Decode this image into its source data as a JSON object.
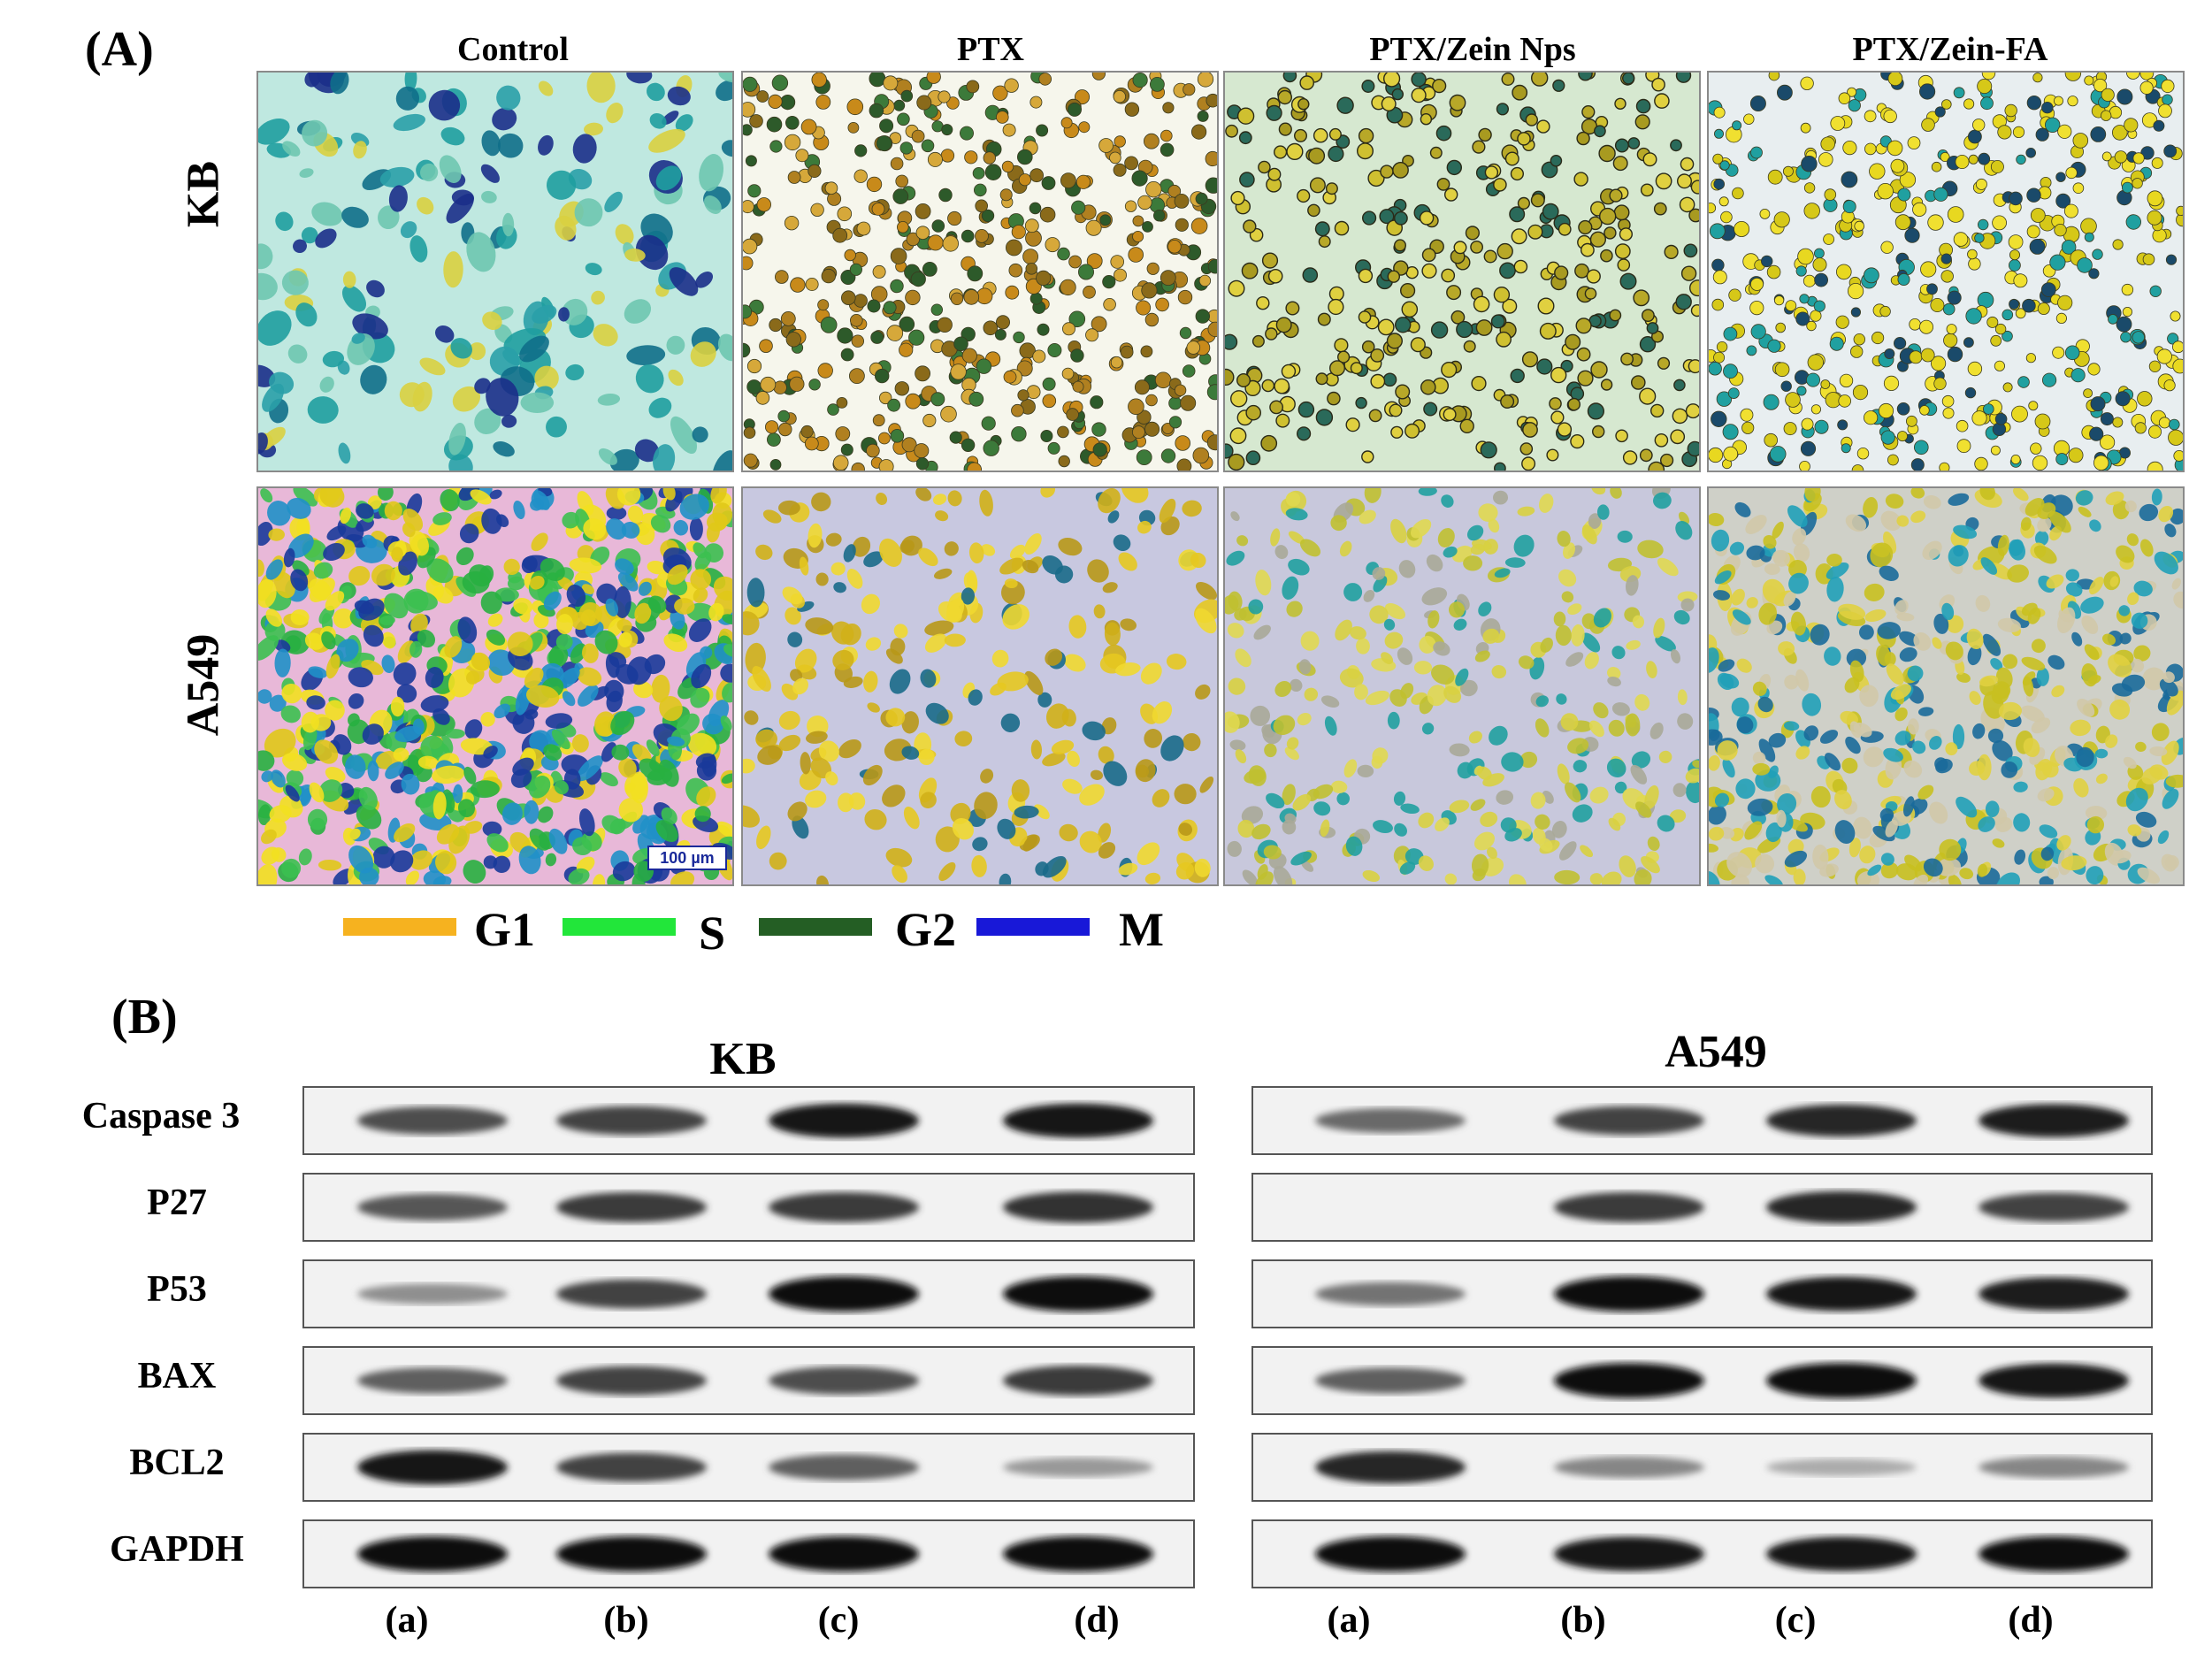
{
  "panelA": {
    "label": "(A)",
    "columns": [
      "Control",
      "PTX",
      "PTX/Zein Nps",
      "PTX/Zein-FA"
    ],
    "rows": [
      "KB",
      "A549"
    ],
    "scale_bar": "100 µm",
    "legend": [
      {
        "label": "G1",
        "color": "#f6b21f"
      },
      {
        "label": "S",
        "color": "#22e63a"
      },
      {
        "label": "G2",
        "color": "#245e24"
      },
      {
        "label": "M",
        "color": "#1818d8"
      }
    ]
  },
  "panelB": {
    "label": "(B)",
    "groups": [
      "KB",
      "A549"
    ],
    "proteins": [
      "Caspase 3",
      "P27",
      "P53",
      "BAX",
      "BCL2",
      "GAPDH"
    ],
    "lanes": [
      "(a)",
      "(b)",
      "(c)",
      "(d)"
    ],
    "band_intensity": {
      "KB": [
        [
          0.65,
          0.7,
          0.95,
          0.95
        ],
        [
          0.6,
          0.75,
          0.75,
          0.8
        ],
        [
          0.3,
          0.7,
          1.0,
          1.0
        ],
        [
          0.55,
          0.7,
          0.65,
          0.75
        ],
        [
          0.95,
          0.7,
          0.55,
          0.25
        ],
        [
          1.0,
          1.0,
          1.0,
          1.0
        ]
      ],
      "A549": [
        [
          0.5,
          0.7,
          0.85,
          0.9
        ],
        [
          0.0,
          0.75,
          0.85,
          0.7
        ],
        [
          0.45,
          1.0,
          0.95,
          0.9
        ],
        [
          0.55,
          1.0,
          1.0,
          0.95
        ],
        [
          0.85,
          0.35,
          0.15,
          0.35
        ],
        [
          1.0,
          0.95,
          0.95,
          1.0
        ]
      ]
    }
  }
}
